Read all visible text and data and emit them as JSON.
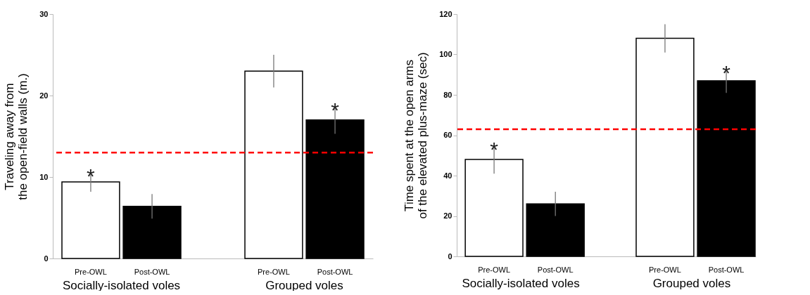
{
  "chart_data": [
    {
      "type": "bar",
      "ylabel": "Traveling away from\nthe open-field walls (m.)",
      "categories": [
        "Socially-isolated voles",
        "Grouped voles"
      ],
      "series": [
        {
          "name": "Pre-OWL",
          "color": "#ffffff",
          "values": [
            9.4,
            23
          ],
          "errors": [
            1.2,
            2
          ]
        },
        {
          "name": "Post-OWL",
          "color": "#000000",
          "values": [
            6.4,
            17
          ],
          "errors": [
            1.5,
            1.7
          ]
        }
      ],
      "ylim": [
        0,
        30
      ],
      "yticks": [
        0,
        10,
        20,
        30
      ],
      "ref_lines": [
        {
          "axis": "y",
          "value": 13,
          "color": "#ff0000",
          "line_style": "dashed"
        }
      ],
      "annotations": [
        {
          "text": "*",
          "x": "Socially-isolated voles",
          "y": 9.4
        },
        {
          "text": "*",
          "x": "Grouped voles",
          "y": 17
        }
      ]
    },
    {
      "type": "bar",
      "ylabel": "Time spent at the open arms\nof the elevated plus-maze (sec)",
      "categories": [
        "Socially-isolated voles",
        "Grouped voles"
      ],
      "series": [
        {
          "name": "Pre-OWL",
          "color": "#ffffff",
          "values": [
            48,
            108
          ],
          "errors": [
            7,
            7
          ]
        },
        {
          "name": "Post-OWL",
          "color": "#000000",
          "values": [
            26,
            87
          ],
          "errors": [
            6,
            6
          ]
        }
      ],
      "ylim": [
        0,
        120
      ],
      "yticks": [
        0,
        20,
        40,
        60,
        80,
        100,
        120
      ],
      "ref_lines": [
        {
          "axis": "y",
          "value": 63,
          "color": "#ff0000",
          "line_style": "dashed"
        }
      ],
      "annotations": [
        {
          "text": "*",
          "x": "Socially-isolated voles",
          "y": 48
        },
        {
          "text": "*",
          "x": "Grouped voles",
          "y": 87
        }
      ]
    }
  ]
}
